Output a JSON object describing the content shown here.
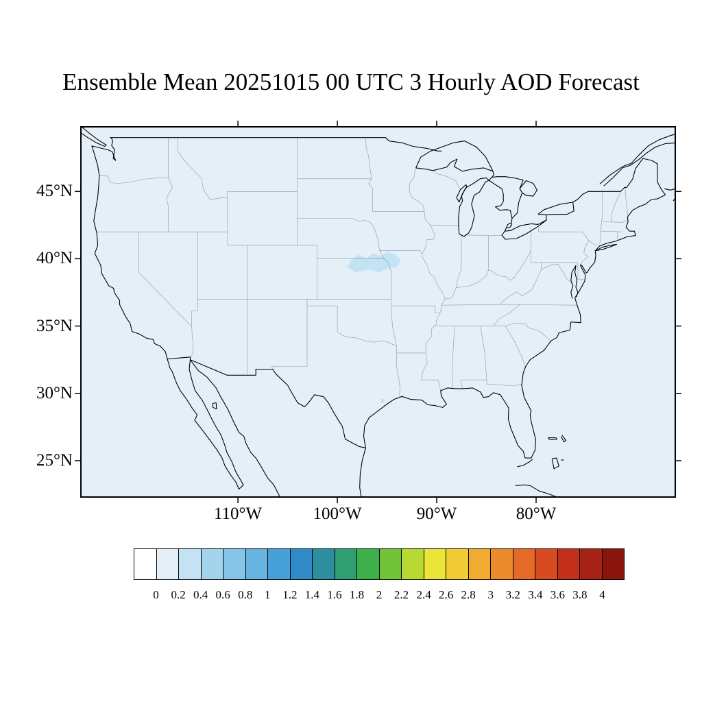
{
  "title": "Ensemble Mean 20251015 00 UTC 3 Hourly AOD Forecast",
  "map": {
    "background_color": "#e4eff8",
    "patch_color": "#c3e2f4",
    "coast_color": "#000000",
    "state_border_color": "#8a97a5",
    "lat_ticks": [
      {
        "deg": 45,
        "label": "45°N"
      },
      {
        "deg": 40,
        "label": "40°N"
      },
      {
        "deg": 35,
        "label": "35°N"
      },
      {
        "deg": 30,
        "label": "30°N"
      },
      {
        "deg": 25,
        "label": "25°N"
      }
    ],
    "lon_ticks": [
      {
        "deg": 110,
        "label": "110°W"
      },
      {
        "deg": 100,
        "label": "100°W"
      },
      {
        "deg": 90,
        "label": "90°W"
      },
      {
        "deg": 80,
        "label": "80°W"
      }
    ]
  },
  "colorbar": {
    "labels": [
      "0",
      "0.2",
      "0.4",
      "0.6",
      "0.8",
      "1",
      "1.2",
      "1.4",
      "1.6",
      "1.8",
      "2",
      "2.2",
      "2.4",
      "2.6",
      "2.8",
      "3",
      "3.2",
      "3.4",
      "3.6",
      "3.8",
      "4"
    ],
    "colors": [
      "#ffffff",
      "#e4eff8",
      "#c3e2f4",
      "#a4d3ee",
      "#86c4e8",
      "#66b3e0",
      "#47a0d7",
      "#2f8bc8",
      "#2c8e9e",
      "#2f9e72",
      "#3cb04b",
      "#71c437",
      "#b8d934",
      "#ece439",
      "#f2cc35",
      "#f0ab30",
      "#ec8b2c",
      "#e56a27",
      "#d84a20",
      "#c2301b",
      "#a62116",
      "#8a150f"
    ]
  },
  "chart_data": {
    "type": "heatmap",
    "title": "Ensemble Mean 20251015 00 UTC 3 Hourly AOD Forecast",
    "region": "Continental United States",
    "variable": "Aerosol Optical Depth (AOD)",
    "x_tick_labels": [
      "110°W",
      "100°W",
      "90°W",
      "80°W"
    ],
    "y_tick_labels": [
      "45°N",
      "40°N",
      "35°N",
      "30°N",
      "25°N"
    ],
    "colorbar_boundaries": [
      0,
      0.2,
      0.4,
      0.6,
      0.8,
      1,
      1.2,
      1.4,
      1.6,
      1.8,
      2,
      2.2,
      2.4,
      2.6,
      2.8,
      3,
      3.2,
      3.4,
      3.6,
      3.8,
      4
    ],
    "field_summary": "AOD near 0-0.2 over nearly all of the domain, with a small 0.2-0.4 patch over the Nebraska/Kansas/Iowa/Missouri region and a tiny spot near the upper Texas coast"
  }
}
